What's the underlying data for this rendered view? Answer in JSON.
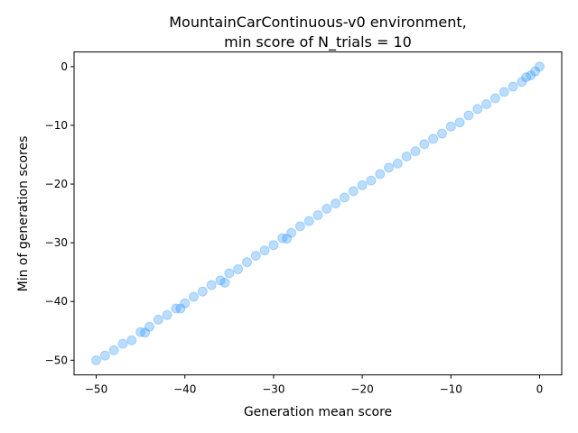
{
  "chart_data": {
    "type": "scatter",
    "title_lines": [
      "MountainCarContinuous-v0 environment,",
      "min score of N_trials = 10"
    ],
    "xlabel": "Generation mean score",
    "ylabel": "Min of generation scores",
    "xlim": [
      -52.5,
      2.5
    ],
    "ylim": [
      -52.5,
      2.5
    ],
    "xticks": [
      -50,
      -40,
      -30,
      -20,
      -10,
      0
    ],
    "yticks": [
      -50,
      -40,
      -30,
      -20,
      -10,
      0
    ],
    "xtick_labels": [
      "−50",
      "−40",
      "−30",
      "−20",
      "−10",
      "0"
    ],
    "ytick_labels": [
      "−50",
      "−40",
      "−30",
      "−20",
      "−10",
      "0"
    ],
    "grid": false,
    "legend": null,
    "marker_color": "#1e90ff",
    "marker_alpha": 0.3,
    "series": [
      {
        "x": [
          -50.0,
          -49.0,
          -48.0,
          -47.0,
          -46.0,
          -45.0,
          -44.5,
          -44.0,
          -43.0,
          -42.0,
          -41.0,
          -40.5,
          -40.0,
          -39.0,
          -38.0,
          -37.0,
          -36.0,
          -35.5,
          -35.0,
          -34.0,
          -33.0,
          -32.0,
          -31.0,
          -30.0,
          -29.0,
          -28.5,
          -28.0,
          -27.0,
          -26.0,
          -25.0,
          -24.0,
          -23.0,
          -22.0,
          -21.0,
          -20.0,
          -19.0,
          -18.0,
          -17.0,
          -16.0,
          -15.0,
          -14.0,
          -13.0,
          -12.0,
          -11.0,
          -10.0,
          -9.0,
          -8.0,
          -7.0,
          -6.0,
          -5.0,
          -4.0,
          -3.0,
          -2.0,
          -1.5,
          -1.0,
          -0.5,
          0.0
        ],
        "y": [
          -50.0,
          -49.2,
          -48.3,
          -47.2,
          -46.6,
          -45.2,
          -45.3,
          -44.3,
          -43.1,
          -42.3,
          -41.2,
          -41.2,
          -40.3,
          -39.2,
          -38.3,
          -37.2,
          -36.4,
          -36.8,
          -35.2,
          -34.5,
          -33.3,
          -32.2,
          -31.3,
          -30.4,
          -29.2,
          -29.3,
          -28.3,
          -27.2,
          -26.3,
          -25.3,
          -24.2,
          -23.3,
          -22.3,
          -21.2,
          -20.2,
          -19.4,
          -18.3,
          -17.2,
          -16.5,
          -15.3,
          -14.4,
          -13.2,
          -12.3,
          -11.4,
          -10.2,
          -9.5,
          -8.3,
          -7.2,
          -6.4,
          -5.4,
          -4.3,
          -3.4,
          -2.6,
          -1.8,
          -1.5,
          -0.8,
          0.0
        ]
      }
    ]
  }
}
